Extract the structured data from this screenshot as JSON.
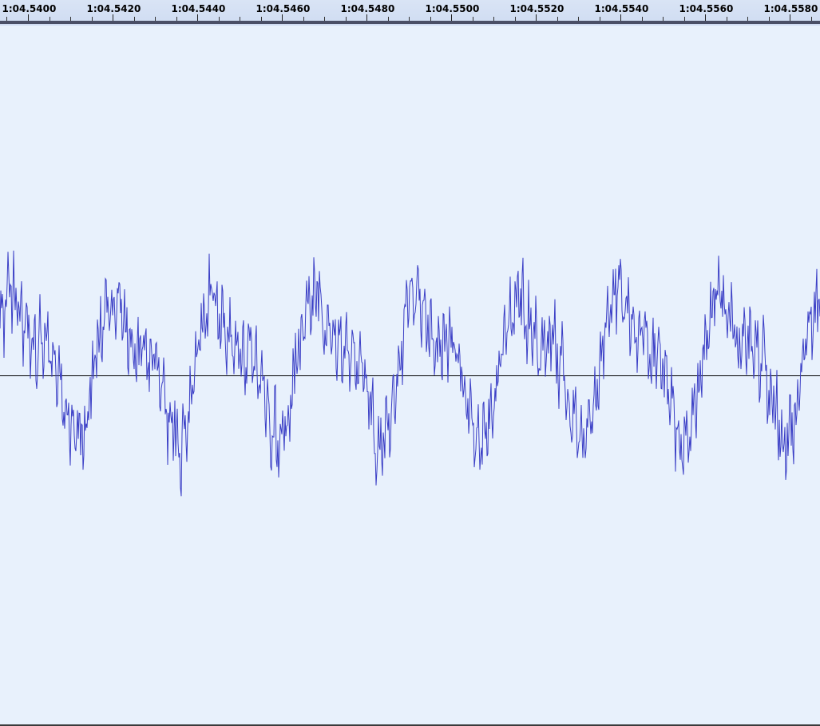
{
  "timeline": {
    "ticks": [
      {
        "label": "1:04.5400",
        "t": 64.54
      },
      {
        "label": "1:04.5420",
        "t": 64.542
      },
      {
        "label": "1:04.5440",
        "t": 64.544
      },
      {
        "label": "1:04.5460",
        "t": 64.546
      },
      {
        "label": "1:04.5480",
        "t": 64.548
      },
      {
        "label": "1:04.5500",
        "t": 64.55
      },
      {
        "label": "1:04.5520",
        "t": 64.552
      },
      {
        "label": "1:04.5540",
        "t": 64.554
      },
      {
        "label": "1:04.5560",
        "t": 64.556
      },
      {
        "label": "1:04.5580",
        "t": 64.558
      }
    ],
    "minor_step": 0.0005
  },
  "track": {
    "background_color": "#e8f1fc",
    "wave_color": "#3b3fc6",
    "zero_line_color": "#000000"
  },
  "waveform": {
    "amplitude_scale": "linear",
    "dc_offset": 0.32,
    "peak": 0.99,
    "cycles": 8.1,
    "seed": 7
  }
}
